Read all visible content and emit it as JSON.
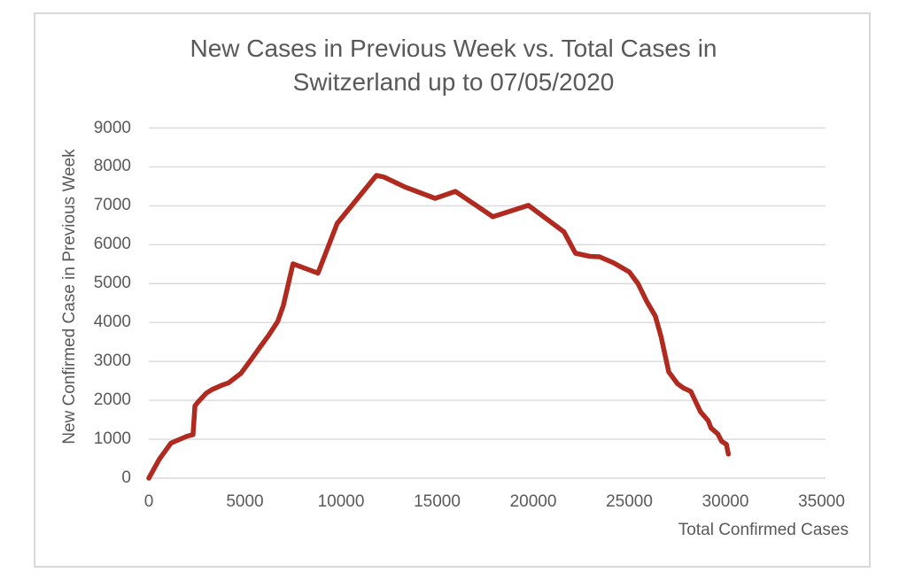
{
  "colors": {
    "line": "#B02A20",
    "text": "#595959",
    "grid": "#D9D9D9",
    "frame_border": "#D9D9D9",
    "background": "#FFFFFF"
  },
  "chart_data": {
    "type": "line",
    "title": "New Cases in Previous Week vs. Total Cases in Switzerland up to 07/05/2020",
    "xlabel": "Total Confirmed Cases",
    "ylabel": "New Confirmed Case in Previous Week",
    "xlim": [
      0,
      35000
    ],
    "ylim": [
      0,
      9000
    ],
    "x_ticks": [
      0,
      5000,
      10000,
      15000,
      20000,
      25000,
      30000,
      35000
    ],
    "y_ticks": [
      0,
      1000,
      2000,
      3000,
      4000,
      5000,
      6000,
      7000,
      8000,
      9000
    ],
    "grid": "horizontal",
    "legend_position": "none",
    "series": [
      {
        "points": [
          [
            0,
            0
          ],
          [
            550,
            490
          ],
          [
            1150,
            900
          ],
          [
            2000,
            1080
          ],
          [
            2300,
            1120
          ],
          [
            2400,
            1860
          ],
          [
            2550,
            1950
          ],
          [
            3000,
            2190
          ],
          [
            3300,
            2280
          ],
          [
            3800,
            2390
          ],
          [
            4150,
            2450
          ],
          [
            4800,
            2700
          ],
          [
            5300,
            3030
          ],
          [
            5850,
            3410
          ],
          [
            6250,
            3680
          ],
          [
            6700,
            4020
          ],
          [
            7000,
            4440
          ],
          [
            7500,
            5510
          ],
          [
            8800,
            5270
          ],
          [
            9800,
            6550
          ],
          [
            11840,
            7780
          ],
          [
            12230,
            7740
          ],
          [
            13300,
            7490
          ],
          [
            14900,
            7190
          ],
          [
            15950,
            7370
          ],
          [
            17900,
            6720
          ],
          [
            19750,
            7010
          ],
          [
            21600,
            6330
          ],
          [
            22200,
            5780
          ],
          [
            22950,
            5700
          ],
          [
            23450,
            5690
          ],
          [
            24200,
            5530
          ],
          [
            25000,
            5300
          ],
          [
            25450,
            5000
          ],
          [
            25900,
            4550
          ],
          [
            26350,
            4170
          ],
          [
            26650,
            3640
          ],
          [
            27050,
            2730
          ],
          [
            27500,
            2430
          ],
          [
            27800,
            2320
          ],
          [
            28200,
            2230
          ],
          [
            28700,
            1710
          ],
          [
            29100,
            1480
          ],
          [
            29250,
            1290
          ],
          [
            29600,
            1140
          ],
          [
            29800,
            950
          ],
          [
            30050,
            870
          ],
          [
            30150,
            620
          ]
        ]
      }
    ]
  }
}
